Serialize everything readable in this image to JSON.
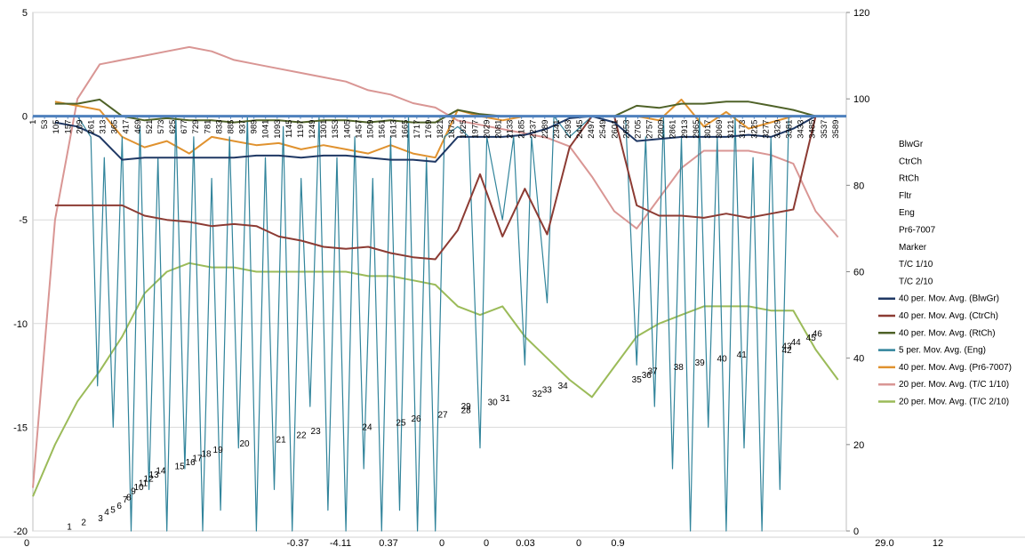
{
  "chart_data": {
    "type": "line",
    "xlim": [
      1,
      3637
    ],
    "xticks": [
      1,
      53,
      105,
      157,
      209,
      261,
      313,
      365,
      417,
      469,
      521,
      573,
      625,
      677,
      729,
      781,
      833,
      885,
      937,
      989,
      1041,
      1093,
      1145,
      1197,
      1249,
      1301,
      1353,
      1405,
      1457,
      1509,
      1561,
      1613,
      1665,
      1717,
      1769,
      1821,
      1873,
      1925,
      1977,
      2029,
      2081,
      2133,
      2185,
      2237,
      2289,
      2341,
      2393,
      2445,
      2497,
      2549,
      2601,
      2653,
      2705,
      2757,
      2809,
      2861,
      2913,
      2965,
      3017,
      3069,
      3121,
      3173,
      3225,
      3277,
      3329,
      3381,
      3433,
      3485,
      3537,
      3589
    ],
    "ylim": [
      -20,
      5
    ],
    "yticks": [
      -20,
      -15,
      -10,
      -5,
      0,
      5
    ],
    "y2lim": [
      0,
      120
    ],
    "y2ticks": [
      0,
      20,
      40,
      60,
      80,
      100,
      120
    ],
    "grid": true,
    "legend": "right",
    "x": [
      1,
      100,
      200,
      300,
      400,
      500,
      600,
      700,
      800,
      900,
      1000,
      1100,
      1200,
      1300,
      1400,
      1500,
      1600,
      1700,
      1800,
      1900,
      2000,
      2100,
      2200,
      2300,
      2400,
      2500,
      2600,
      2700,
      2800,
      2900,
      3000,
      3100,
      3200,
      3300,
      3400,
      3500,
      3600
    ],
    "extra_legend": [
      "BlwGr",
      "CtrCh",
      "RtCh",
      "Fltr",
      "Eng",
      "Pr6-7007",
      "Marker",
      "T/C 1/10",
      "T/C 2/10"
    ],
    "series": [
      {
        "name": "40 per. Mov. Avg. (BlwGr)",
        "color": "#1f3864",
        "values": [
          null,
          -0.3,
          -0.5,
          -1.0,
          -2.1,
          -2.0,
          -2.0,
          -2.0,
          -2.0,
          -2.0,
          -1.9,
          -1.9,
          -2.0,
          -1.9,
          -1.9,
          -2.0,
          -2.1,
          -2.1,
          -2.2,
          -1.0,
          -1.0,
          -1.0,
          -0.9,
          -0.6,
          -0.1,
          0,
          -0.3,
          -1.2,
          -1.1,
          -1.0,
          -1.0,
          -1.0,
          -0.9,
          -1.0,
          -0.6,
          0,
          0
        ]
      },
      {
        "name": "40 per. Mov. Avg. (CtrCh)",
        "color": "#8c3b33",
        "values": [
          null,
          -4.3,
          -4.3,
          -4.3,
          -4.3,
          -4.8,
          -5.0,
          -5.1,
          -5.3,
          -5.2,
          -5.3,
          -5.8,
          -6.0,
          -6.3,
          -6.4,
          -6.3,
          -6.6,
          -6.8,
          -6.9,
          -5.5,
          -2.8,
          -5.8,
          -3.5,
          -5.7,
          -1.5,
          0,
          0,
          -4.3,
          -4.8,
          -4.8,
          -4.9,
          -4.7,
          -4.9,
          -4.7,
          -4.5,
          0,
          0
        ]
      },
      {
        "name": "40 per. Mov. Avg. (RtCh)",
        "color": "#4f6228",
        "values": [
          null,
          0.6,
          0.6,
          0.8,
          0,
          -0.2,
          -0.1,
          -0.2,
          -0.2,
          -0.3,
          -0.2,
          -0.2,
          -0.3,
          -0.2,
          -0.2,
          -0.3,
          -0.2,
          -0.3,
          -0.3,
          0.3,
          0.1,
          0,
          0,
          0,
          0,
          0,
          0,
          0.5,
          0.4,
          0.6,
          0.6,
          0.7,
          0.7,
          0.5,
          0.3,
          0,
          0
        ]
      },
      {
        "name": "5 per. Mov. Avg. (Eng)",
        "color": "#31849b",
        "x": [
          1,
          200,
          260,
          290,
          320,
          360,
          400,
          440,
          480,
          520,
          560,
          600,
          640,
          680,
          720,
          760,
          800,
          840,
          880,
          920,
          960,
          1000,
          1040,
          1080,
          1120,
          1160,
          1200,
          1240,
          1280,
          1320,
          1360,
          1400,
          1440,
          1480,
          1520,
          1560,
          1600,
          1640,
          1680,
          1720,
          1760,
          1800,
          1840,
          1900,
          1950,
          2000,
          2030,
          2100,
          2150,
          2200,
          2230,
          2300,
          2330,
          2400,
          2500,
          2600,
          2650,
          2700,
          2740,
          2780,
          2820,
          2860,
          2900,
          2940,
          2980,
          3020,
          3060,
          3100,
          3140,
          3180,
          3220,
          3260,
          3300,
          3340,
          3380,
          3420,
          3600
        ],
        "values": [
          0,
          0,
          -1,
          -13,
          -2,
          -15,
          -1,
          -20,
          -0.5,
          -18,
          -2,
          -20,
          0,
          -17,
          -1,
          -20,
          -3,
          -19,
          -1,
          -16,
          0,
          -20,
          -2,
          -18,
          -0.5,
          -20,
          -3,
          -14,
          0,
          -19,
          -2,
          -20,
          -1,
          -17,
          -3,
          -20,
          -1,
          -19,
          0,
          -20,
          -2,
          -20,
          -1,
          -0.5,
          -1,
          -16,
          -1,
          -5,
          -1,
          -12,
          -1,
          -9,
          0,
          -1,
          0,
          0,
          0,
          -12,
          -1,
          -14,
          0,
          -17,
          -1,
          -20,
          0,
          -15,
          -1,
          -20,
          0,
          -16,
          -2,
          -20,
          -1,
          -18,
          0,
          0,
          0
        ]
      },
      {
        "name": "40 per. Mov. Avg. (Pr6-7007)",
        "color": "#e0922f",
        "values": [
          null,
          0.7,
          0.5,
          0.3,
          -1.0,
          -1.5,
          -1.2,
          -1.8,
          -1.0,
          -1.2,
          -1.4,
          -1.3,
          -1.6,
          -1.4,
          -1.6,
          -1.8,
          -1.4,
          -1.8,
          -2.0,
          0.3,
          0,
          -0.2,
          0,
          0,
          0,
          0,
          0,
          0,
          -0.2,
          0.8,
          -0.5,
          0.2,
          -0.6,
          -0.3,
          0,
          0,
          0
        ]
      },
      {
        "name": "20 per. Mov. Avg. (T/C 1/10)",
        "color": "#d99694",
        "axis": "y2",
        "values": [
          10,
          72,
          100,
          108,
          109,
          110,
          111,
          112,
          111,
          109,
          108,
          107,
          106,
          105,
          104,
          102,
          101,
          99,
          98,
          95,
          94,
          93,
          92,
          91,
          89,
          82,
          74,
          70,
          77,
          84,
          88,
          88,
          88,
          87,
          85,
          74,
          68
        ]
      },
      {
        "name": "20 per. Mov. Avg. (T/C 2/10)",
        "color": "#9bbb59",
        "axis": "y2",
        "values": [
          8,
          20,
          30,
          37,
          45,
          55,
          60,
          62,
          61,
          61,
          60,
          60,
          60,
          60,
          60,
          59,
          59,
          58,
          57,
          52,
          50,
          52,
          45,
          40,
          35,
          31,
          38,
          45,
          48,
          50,
          52,
          52,
          52,
          51,
          51,
          42,
          35
        ]
      }
    ],
    "annotations": {
      "x": [
        164,
        228,
        303,
        331,
        359,
        387,
        414,
        430,
        450,
        474,
        494,
        518,
        542,
        573,
        657,
        705,
        736,
        776,
        828,
        947,
        1110,
        1201,
        1265,
        1495,
        1646,
        1714,
        1833,
        1937,
        1937,
        2056,
        2112,
        2255,
        2299,
        2370,
        2700,
        2744,
        2771,
        2887,
        2982,
        3081,
        3169,
        3371,
        3371,
        3411,
        3479,
        3507
      ],
      "y": [
        -19.8,
        -19.6,
        -19.4,
        -19.1,
        -19.0,
        -18.8,
        -18.5,
        -18.4,
        -18.1,
        -17.9,
        -17.7,
        -17.5,
        -17.3,
        -17.1,
        -16.9,
        -16.7,
        -16.5,
        -16.3,
        -16.1,
        -15.8,
        -15.6,
        -15.4,
        -15.2,
        -15.0,
        -14.8,
        -14.6,
        -14.4,
        -14.2,
        -14.0,
        -13.8,
        -13.6,
        -13.4,
        -13.2,
        -13.0,
        -12.7,
        -12.5,
        -12.3,
        -12.1,
        -11.9,
        -11.7,
        -11.5,
        -11.3,
        -11.1,
        -10.9,
        -10.7,
        -10.5
      ],
      "labels": [
        1,
        2,
        3,
        4,
        5,
        6,
        7,
        8,
        9,
        10,
        11,
        12,
        13,
        14,
        15,
        16,
        17,
        18,
        19,
        20,
        21,
        22,
        23,
        24,
        25,
        26,
        27,
        28,
        29,
        30,
        31,
        32,
        33,
        34,
        35,
        36,
        37,
        38,
        39,
        40,
        41,
        42,
        43,
        44,
        45,
        46
      ]
    },
    "footer_cells": [
      "0",
      "-0.37",
      "-4.11",
      "0.37",
      "0",
      "0",
      "0.03",
      "0",
      "0.9",
      "29.0",
      "12"
    ]
  }
}
